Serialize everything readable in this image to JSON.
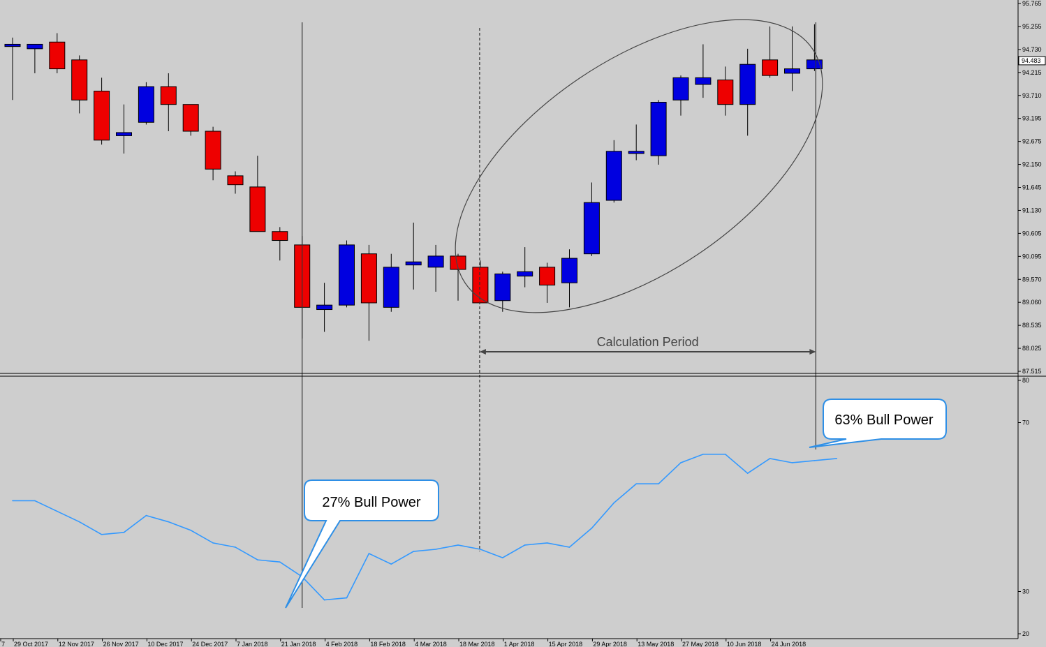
{
  "chart_data": [
    {
      "type": "candlestick",
      "title": "",
      "price_axis_ticks": [
        "95.765",
        "95.255",
        "94.730",
        "94.215",
        "93.710",
        "93.195",
        "92.675",
        "92.150",
        "91.645",
        "91.130",
        "90.605",
        "90.095",
        "89.570",
        "89.060",
        "88.535",
        "88.025",
        "87.515"
      ],
      "current_price": "94.483",
      "ylim": [
        87.515,
        95.765
      ],
      "x_labels": [
        "7",
        "29 Oct 2017",
        "12 Nov 2017",
        "26 Nov 2017",
        "10 Dec 2017",
        "24 Dec 2017",
        "7 Jan 2018",
        "21 Jan 2018",
        "4 Feb 2018",
        "18 Feb 2018",
        "4 Mar 2018",
        "18 Mar 2018",
        "1 Apr 2018",
        "15 Apr 2018",
        "29 Apr 2018",
        "13 May 2018",
        "27 May 2018",
        "10 Jun 2018",
        "24 Jun 2018"
      ],
      "candles": [
        {
          "o": 94.8,
          "h": 95.0,
          "l": 93.6,
          "c": 94.85
        },
        {
          "o": 94.75,
          "h": 94.8,
          "l": 94.2,
          "c": 94.85
        },
        {
          "o": 94.9,
          "h": 95.1,
          "l": 94.2,
          "c": 94.3
        },
        {
          "o": 94.5,
          "h": 94.6,
          "l": 93.3,
          "c": 93.6
        },
        {
          "o": 93.8,
          "h": 94.1,
          "l": 92.6,
          "c": 92.7
        },
        {
          "o": 92.8,
          "h": 93.5,
          "l": 92.4,
          "c": 92.87
        },
        {
          "o": 93.1,
          "h": 94.0,
          "l": 93.05,
          "c": 93.9
        },
        {
          "o": 93.9,
          "h": 94.2,
          "l": 92.9,
          "c": 93.5
        },
        {
          "o": 93.5,
          "h": 93.5,
          "l": 92.8,
          "c": 92.9
        },
        {
          "o": 92.9,
          "h": 93.0,
          "l": 91.8,
          "c": 92.05
        },
        {
          "o": 91.9,
          "h": 92.0,
          "l": 91.5,
          "c": 91.7
        },
        {
          "o": 91.65,
          "h": 92.35,
          "l": 90.65,
          "c": 90.65
        },
        {
          "o": 90.65,
          "h": 90.75,
          "l": 90.0,
          "c": 90.45
        },
        {
          "o": 90.35,
          "h": 90.55,
          "l": 88.25,
          "c": 88.95
        },
        {
          "o": 88.9,
          "h": 89.5,
          "l": 88.4,
          "c": 89.0
        },
        {
          "o": 89.0,
          "h": 90.45,
          "l": 88.95,
          "c": 90.35
        },
        {
          "o": 90.15,
          "h": 90.35,
          "l": 88.2,
          "c": 89.05
        },
        {
          "o": 88.95,
          "h": 90.15,
          "l": 88.85,
          "c": 89.85
        },
        {
          "o": 89.9,
          "h": 90.85,
          "l": 89.35,
          "c": 89.97
        },
        {
          "o": 89.85,
          "h": 90.35,
          "l": 89.3,
          "c": 90.1
        },
        {
          "o": 90.1,
          "h": 90.15,
          "l": 89.1,
          "c": 89.8
        },
        {
          "o": 89.85,
          "h": 90.0,
          "l": 89.05,
          "c": 89.05
        },
        {
          "o": 89.1,
          "h": 89.75,
          "l": 88.85,
          "c": 89.7
        },
        {
          "o": 89.65,
          "h": 90.3,
          "l": 89.4,
          "c": 89.75
        },
        {
          "o": 89.85,
          "h": 89.95,
          "l": 89.05,
          "c": 89.45
        },
        {
          "o": 89.5,
          "h": 90.25,
          "l": 88.95,
          "c": 90.05
        },
        {
          "o": 90.15,
          "h": 91.75,
          "l": 90.1,
          "c": 91.3
        },
        {
          "o": 91.35,
          "h": 92.7,
          "l": 91.3,
          "c": 92.45
        },
        {
          "o": 92.4,
          "h": 93.05,
          "l": 92.25,
          "c": 92.45
        },
        {
          "o": 92.35,
          "h": 93.6,
          "l": 92.15,
          "c": 93.55
        },
        {
          "o": 93.6,
          "h": 94.15,
          "l": 93.25,
          "c": 94.1
        },
        {
          "o": 93.95,
          "h": 94.85,
          "l": 93.65,
          "c": 94.1
        },
        {
          "o": 94.05,
          "h": 94.35,
          "l": 93.25,
          "c": 93.5
        },
        {
          "o": 93.5,
          "h": 94.75,
          "l": 92.8,
          "c": 94.4
        },
        {
          "o": 94.5,
          "h": 95.25,
          "l": 94.1,
          "c": 94.15
        },
        {
          "o": 94.2,
          "h": 95.25,
          "l": 93.8,
          "c": 94.3
        },
        {
          "o": 94.3,
          "h": 95.3,
          "l": 94.25,
          "c": 94.5
        }
      ],
      "annotation": {
        "label": "Calculation Period"
      }
    },
    {
      "type": "line",
      "title": "",
      "y_ticks": [
        "80",
        "70",
        "30",
        "20"
      ],
      "ylim": [
        20,
        80
      ],
      "values": [
        51.5,
        51.5,
        49,
        46.5,
        43.5,
        44,
        48,
        46.5,
        44.5,
        41.5,
        40.5,
        37.5,
        37,
        33.5,
        28,
        28.5,
        39,
        36.5,
        39.5,
        40,
        41,
        40,
        38,
        41,
        41.5,
        40.5,
        45,
        51,
        55.5,
        55.5,
        60.5,
        62.5,
        62.5,
        58,
        61.5,
        60.5,
        61,
        61.5
      ],
      "line_color": "#3399ff"
    }
  ],
  "callouts": {
    "left": "27% Bull Power",
    "right": "63% Bull Power"
  },
  "colors": {
    "background": "#cecece",
    "bull": "#0000e0",
    "bear": "#ee0000",
    "callout_border": "#2e8fe6"
  }
}
